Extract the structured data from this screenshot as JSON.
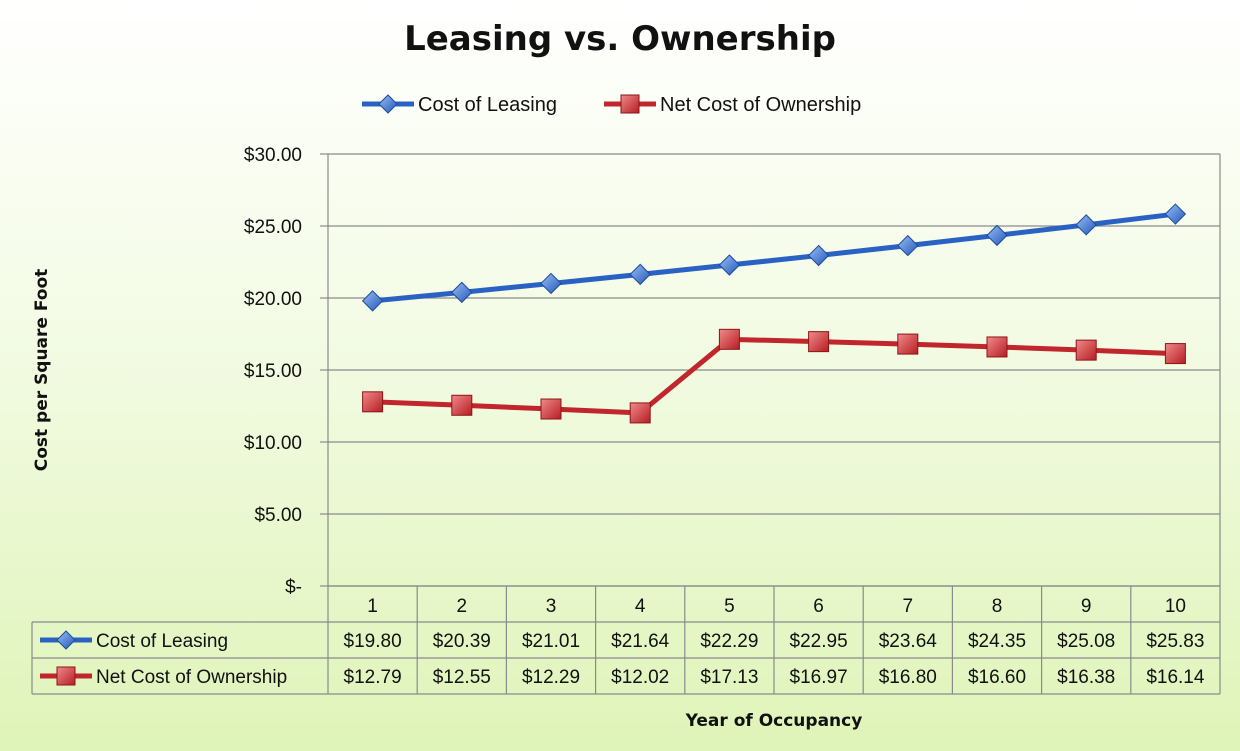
{
  "chart_data": {
    "type": "line",
    "title": "Leasing vs. Ownership",
    "xlabel": "Year of Occupancy",
    "ylabel": "Cost per Square Foot",
    "categories": [
      "1",
      "2",
      "3",
      "4",
      "5",
      "6",
      "7",
      "8",
      "9",
      "10"
    ],
    "ylim": [
      0,
      30
    ],
    "yticks": [
      0,
      5,
      10,
      15,
      20,
      25,
      30
    ],
    "ytick_labels": [
      "$-",
      "$5.00",
      "$10.00",
      "$15.00",
      "$20.00",
      "$25.00",
      "$30.00"
    ],
    "grid": true,
    "legend_position": "top",
    "data_table": true,
    "series": [
      {
        "name": "Cost of Leasing",
        "color": "#2a62c4",
        "marker": "diamond",
        "values": [
          19.8,
          20.39,
          21.01,
          21.64,
          22.29,
          22.95,
          23.64,
          24.35,
          25.08,
          25.83
        ],
        "labels": [
          "$19.80",
          "$20.39",
          "$21.01",
          "$21.64",
          "$22.29",
          "$22.95",
          "$23.64",
          "$24.35",
          "$25.08",
          "$25.83"
        ]
      },
      {
        "name": "Net Cost of Ownership",
        "color": "#c0262b",
        "marker": "square",
        "values": [
          12.79,
          12.55,
          12.29,
          12.02,
          17.13,
          16.97,
          16.8,
          16.6,
          16.38,
          16.14
        ],
        "labels": [
          "$12.79",
          "$12.55",
          "$12.29",
          "$12.02",
          "$17.13",
          "$16.97",
          "$16.80",
          "$16.60",
          "$16.38",
          "$16.14"
        ]
      }
    ]
  }
}
